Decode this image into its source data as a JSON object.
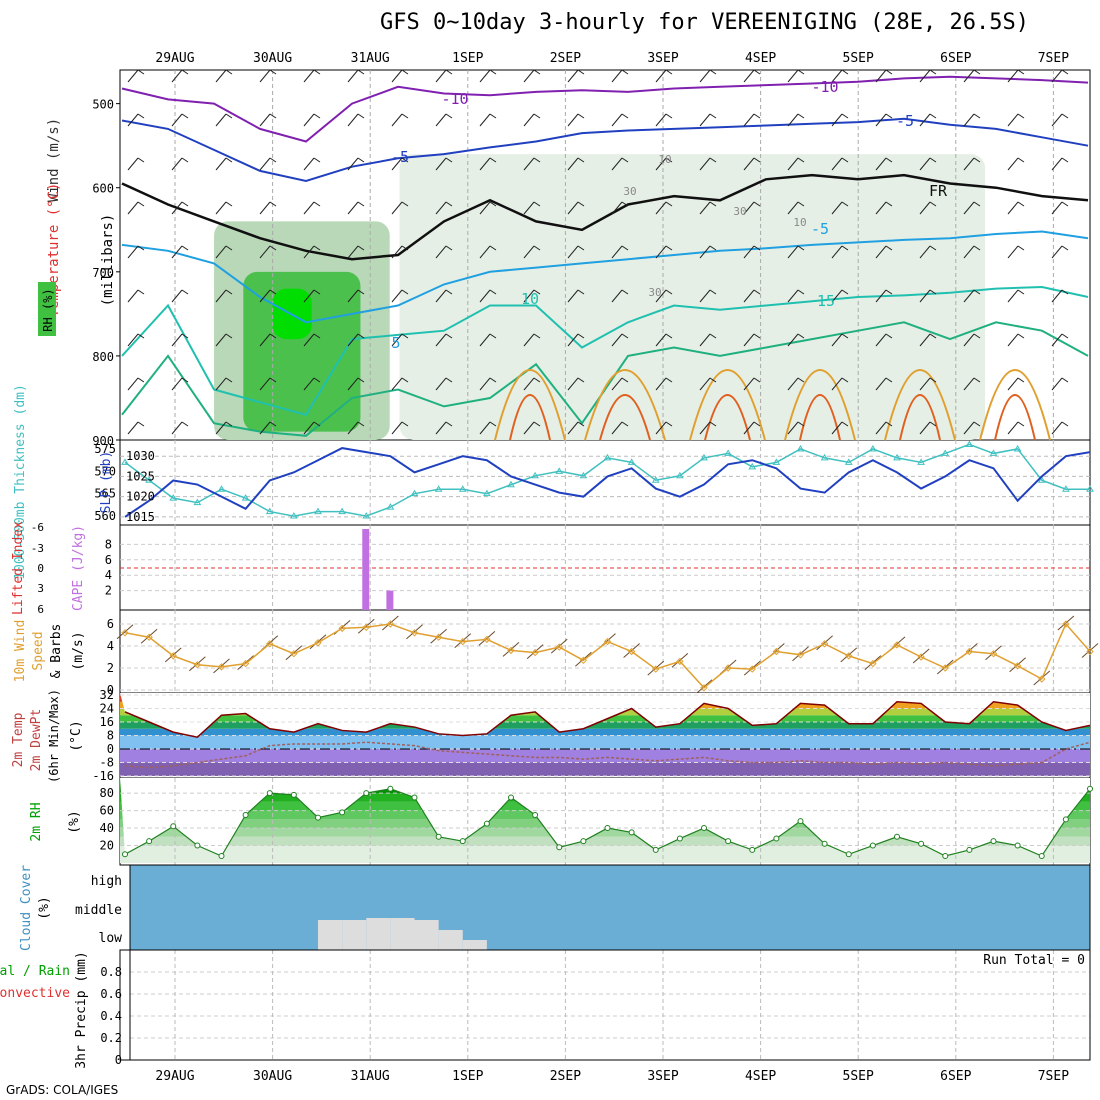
{
  "title": "GFS 0~10day 3-hourly for VEREENIGING (28E, 26.5S)",
  "credit": "GrADS: COLA/IGES",
  "colors": {
    "wind_label": "#303030",
    "temp_label": "#e03030",
    "rh_label": "#00a000",
    "thickness_label": "#40c0c0",
    "slp_label": "#2040c0",
    "cape_label": "#c070e0",
    "li_label": "#e03030",
    "wind10_label": "#e0a030",
    "cloud_fill": "#6aaed6",
    "cloud_low": "#dddddd",
    "convective": "#e03030",
    "total_rain": "#00a000"
  },
  "chart_data": [
    {
      "type": "line",
      "panel": "sounding",
      "x_tick_labels": [
        "29AUG",
        "30AUG",
        "31AUG",
        "1SEP",
        "2SEP",
        "3SEP",
        "4SEP",
        "5SEP",
        "6SEP",
        "7SEP"
      ],
      "ylabel_parts": [
        "Wind (m/s)",
        "Temperature (°C)",
        "RH (%)",
        "(millibars)"
      ],
      "y_ticks": [
        500,
        600,
        700,
        800,
        900
      ],
      "ylim": [
        900,
        460
      ],
      "contour_labels": [
        "-10",
        "-10",
        "-5",
        "-5",
        "FR",
        "-5",
        "10",
        "15",
        "5",
        "10",
        "30",
        "30",
        "10",
        "30"
      ],
      "isotherms": [
        {
          "name": "-10",
          "color": "#8020b0",
          "p": [
            482,
            495,
            500,
            530,
            545,
            500,
            480,
            488,
            490,
            486,
            484,
            486,
            482,
            480,
            478,
            476,
            474,
            470,
            468,
            470,
            472,
            475
          ]
        },
        {
          "name": "-5",
          "color": "#2040c0",
          "p": [
            520,
            530,
            555,
            580,
            592,
            575,
            565,
            560,
            552,
            545,
            535,
            532,
            530,
            528,
            526,
            524,
            522,
            518,
            525,
            530,
            540,
            550
          ]
        },
        {
          "name": "FR",
          "color": "#101010",
          "p": [
            595,
            620,
            640,
            660,
            675,
            685,
            680,
            640,
            615,
            640,
            650,
            620,
            610,
            615,
            590,
            585,
            590,
            585,
            595,
            600,
            610,
            615
          ]
        },
        {
          "name": "5",
          "color": "#20a0e0",
          "p": [
            668,
            675,
            690,
            730,
            760,
            750,
            740,
            715,
            700,
            695,
            690,
            685,
            680,
            675,
            672,
            668,
            665,
            662,
            660,
            655,
            652,
            660
          ]
        },
        {
          "name": "10",
          "color": "#20c0b0",
          "p": [
            800,
            740,
            840,
            855,
            870,
            780,
            775,
            770,
            740,
            740,
            790,
            760,
            740,
            745,
            740,
            735,
            730,
            728,
            725,
            720,
            718,
            730
          ]
        },
        {
          "name": "15",
          "color": "#20b080",
          "p": [
            870,
            800,
            880,
            890,
            895,
            850,
            840,
            860,
            850,
            810,
            880,
            800,
            790,
            800,
            790,
            780,
            770,
            760,
            780,
            760,
            770,
            800
          ]
        }
      ],
      "rh_shading": [
        {
          "level": 90,
          "color": "#00dd00",
          "x": [
            2.0,
            2.4
          ],
          "p": [
            780,
            720
          ]
        },
        {
          "level": 70,
          "color": "#4cc04c",
          "x": [
            1.7,
            2.9
          ],
          "p": [
            890,
            700
          ]
        },
        {
          "level": 50,
          "color": "#b8d8b8",
          "x": [
            1.4,
            3.2
          ],
          "p": [
            900,
            640
          ]
        },
        {
          "level": 30,
          "color": "#e6efe6",
          "x": [
            3.3,
            9.3
          ],
          "p": [
            900,
            560
          ]
        }
      ]
    },
    {
      "type": "line",
      "panel": "slp_thickness",
      "series": [
        {
          "name": "SLP (mb)",
          "color": "#2040c0",
          "values": [
            1015,
            1019,
            1024,
            1023,
            1020,
            1017,
            1024,
            1026,
            1029,
            1032,
            1031,
            1030,
            1026,
            1028,
            1030,
            1029,
            1025,
            1023,
            1021,
            1020,
            1025,
            1027,
            1022,
            1020,
            1023,
            1028,
            1029,
            1027,
            1022,
            1021,
            1026,
            1029,
            1026,
            1022,
            1025,
            1029,
            1027,
            1019,
            1025,
            1030,
            1031
          ]
        },
        {
          "name": "1000-500mb Thickness (dm)",
          "color": "#40c0c0",
          "values": [
            572,
            568,
            564,
            563,
            566,
            564,
            561,
            560,
            561,
            561,
            560,
            562,
            565,
            566,
            566,
            565,
            567,
            569,
            570,
            569,
            573,
            572,
            568,
            569,
            573,
            574,
            571,
            572,
            575,
            573,
            572,
            575,
            573,
            572,
            574,
            576,
            574,
            575,
            568,
            566,
            566
          ]
        }
      ],
      "ylabel_left": "1000-500mb Thickness (dm)",
      "ylabel_right": "SLP (mb)",
      "left_ticks": [
        560,
        565,
        570,
        575
      ],
      "right_ticks": [
        1015,
        1020,
        1025,
        1030
      ],
      "ylim_left": [
        558,
        577
      ],
      "ylim_right": [
        1013,
        1034
      ]
    },
    {
      "type": "bar",
      "panel": "cape_li",
      "series": [
        {
          "name": "CAPE (J/kg)",
          "color": "#c070e0",
          "values": [
            0,
            0,
            0,
            0,
            0,
            0,
            0,
            0,
            0,
            0,
            10,
            2,
            0,
            0,
            0,
            0,
            0,
            0,
            0,
            0,
            0,
            0,
            0,
            0,
            0,
            0,
            0,
            0,
            0,
            0,
            0,
            0,
            0,
            0,
            0,
            0,
            0,
            0,
            0,
            0,
            0
          ]
        }
      ],
      "ylabel_left": "Lifted Index",
      "ylabel_right": "CAPE (J/kg)",
      "left_ticks": [
        "-6",
        "-3",
        "0",
        "3",
        "6"
      ],
      "right_ticks": [
        2,
        4,
        6,
        8
      ],
      "zero_line": 0
    },
    {
      "type": "line",
      "panel": "wind10m",
      "series": [
        {
          "name": "10m Wind Speed",
          "color": "#e0a030",
          "values": [
            5.2,
            4.8,
            3.1,
            2.3,
            2.1,
            2.4,
            4.2,
            3.3,
            4.3,
            5.6,
            5.7,
            6.0,
            5.2,
            4.8,
            4.4,
            4.6,
            3.6,
            3.4,
            3.9,
            2.7,
            4.4,
            3.5,
            1.9,
            2.6,
            0.2,
            2.0,
            1.9,
            3.5,
            3.2,
            4.2,
            3.1,
            2.4,
            4.1,
            3.0,
            2.0,
            3.5,
            3.3,
            2.2,
            1.0,
            6.0,
            3.5
          ]
        }
      ],
      "ylabel": "10m Wind Speed & Barbs (m/s)",
      "y_ticks": [
        0,
        2,
        4,
        6
      ],
      "ylim": [
        0,
        7
      ]
    },
    {
      "type": "area",
      "panel": "temp2m",
      "series": [
        {
          "name": "2m Temp",
          "color": "#800000",
          "values": [
            22,
            16,
            10,
            7,
            20,
            21,
            12,
            10,
            15,
            11,
            10,
            15,
            13,
            9,
            8,
            9,
            20,
            22,
            10,
            12,
            18,
            24,
            13,
            15,
            27,
            24,
            14,
            15,
            27,
            26,
            15,
            15,
            28,
            27,
            16,
            15,
            28,
            26,
            16,
            11,
            14
          ]
        },
        {
          "name": "2m DewPt",
          "color": "#a06060",
          "values": [
            -10,
            -11,
            -10,
            -8,
            -6,
            -4,
            2,
            3,
            3,
            3,
            4,
            3,
            2,
            -1,
            -2,
            -3,
            -4,
            -5,
            -5,
            -6,
            -5,
            -6,
            -7,
            -6,
            -5,
            -7,
            -8,
            -8,
            -7,
            -8,
            -8,
            -9,
            -8,
            -9,
            -8,
            -9,
            -10,
            -9,
            -8,
            0,
            4
          ]
        }
      ],
      "ylabel": "2m Temp 2m DewPt (6hr Min/Max) (°C)",
      "y_ticks": [
        -16,
        -8,
        0,
        8,
        16,
        24,
        32
      ],
      "ylim": [
        -16,
        32
      ]
    },
    {
      "type": "area",
      "panel": "rh2m",
      "series": [
        {
          "name": "2m RH",
          "color": "#208020",
          "values": [
            10,
            25,
            42,
            20,
            8,
            55,
            80,
            78,
            52,
            58,
            80,
            85,
            75,
            30,
            25,
            45,
            75,
            55,
            18,
            25,
            40,
            35,
            15,
            28,
            40,
            25,
            15,
            28,
            48,
            22,
            10,
            20,
            30,
            22,
            8,
            15,
            25,
            20,
            8,
            50,
            85
          ]
        }
      ],
      "ylabel": "2m RH (%)",
      "y_ticks": [
        20,
        40,
        60,
        80
      ],
      "ylim": [
        0,
        95
      ]
    },
    {
      "type": "area",
      "panel": "cloud",
      "ylabel": "Cloud Cover (%)",
      "y_tick_labels": [
        "high",
        "middle",
        "low"
      ],
      "series": [
        {
          "name": "low cloud",
          "color": "#dddddd",
          "values": [
            0,
            0,
            0,
            0,
            0,
            0,
            0,
            0,
            30,
            30,
            32,
            32,
            30,
            20,
            10,
            0,
            0,
            0,
            0,
            0,
            0,
            0,
            0,
            0,
            0,
            0,
            0,
            0,
            0,
            0,
            0,
            0,
            0,
            0,
            0,
            0,
            0,
            0,
            0,
            0,
            0
          ]
        }
      ]
    },
    {
      "type": "line",
      "panel": "precip",
      "ylabel": "3hr Precip (mm)",
      "ylabel_left": "Total / Rain",
      "ylabel_left2": "Convective",
      "y_ticks": [
        0,
        0.2,
        0.4,
        0.6,
        0.8
      ],
      "ylim": [
        0,
        1.0
      ],
      "run_total_label": "Run Total = 0",
      "x_tick_labels": [
        "29AUG",
        "30AUG",
        "31AUG",
        "1SEP",
        "2SEP",
        "3SEP",
        "4SEP",
        "5SEP",
        "6SEP",
        "7SEP"
      ]
    }
  ]
}
